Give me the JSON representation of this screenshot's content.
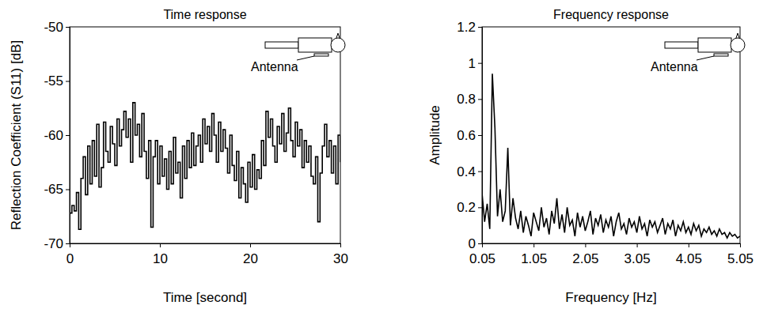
{
  "chart_data": [
    {
      "type": "line",
      "title": "Time response",
      "x_label": "Time [second]",
      "y_label": "Reflection Coefficient (S11) [dB]",
      "annotation": "Antenna",
      "color": "#000000",
      "line_style": "step",
      "xlim": [
        0,
        30
      ],
      "xticks": [
        0,
        10,
        20,
        30
      ],
      "ylim": [
        -70,
        -50
      ],
      "yticks": [
        -70,
        -65,
        -60,
        -55,
        -50
      ],
      "x": [
        0,
        0.25,
        0.5,
        0.75,
        1,
        1.25,
        1.5,
        1.75,
        2,
        2.25,
        2.5,
        2.75,
        3,
        3.25,
        3.5,
        3.75,
        4,
        4.25,
        4.5,
        4.75,
        5,
        5.25,
        5.5,
        5.75,
        6,
        6.25,
        6.5,
        6.75,
        7,
        7.25,
        7.5,
        7.75,
        8,
        8.25,
        8.5,
        8.75,
        9,
        9.25,
        9.5,
        9.75,
        10,
        10.25,
        10.5,
        10.75,
        11,
        11.25,
        11.5,
        11.75,
        12,
        12.25,
        12.5,
        12.75,
        13,
        13.25,
        13.5,
        13.75,
        14,
        14.25,
        14.5,
        14.75,
        15,
        15.25,
        15.5,
        15.75,
        16,
        16.25,
        16.5,
        16.75,
        17,
        17.25,
        17.5,
        17.75,
        18,
        18.25,
        18.5,
        18.75,
        19,
        19.25,
        19.5,
        19.75,
        20,
        20.25,
        20.5,
        20.75,
        21,
        21.25,
        21.5,
        21.75,
        22,
        22.25,
        22.5,
        22.75,
        23,
        23.25,
        23.5,
        23.75,
        24,
        24.25,
        24.5,
        24.75,
        25,
        25.25,
        25.5,
        25.75,
        26,
        26.25,
        26.5,
        26.75,
        27,
        27.25,
        27.5,
        27.75,
        28,
        28.25,
        28.5,
        28.75,
        29,
        29.25,
        29.5,
        29.75,
        30
      ],
      "values": [
        -67.2,
        -66.5,
        -67.0,
        -65.3,
        -68.7,
        -64.0,
        -62.0,
        -65.5,
        -61.0,
        -64.5,
        -60.5,
        -63.8,
        -59.0,
        -64.8,
        -63.0,
        -58.8,
        -61.5,
        -62.5,
        -59.2,
        -60.8,
        -62.8,
        -58.5,
        -61.0,
        -59.5,
        -57.8,
        -60.2,
        -58.5,
        -62.5,
        -57.0,
        -60.0,
        -59.0,
        -62.0,
        -58.0,
        -61.5,
        -64.0,
        -60.5,
        -68.5,
        -62.0,
        -60.5,
        -64.5,
        -61.0,
        -63.8,
        -62.2,
        -65.0,
        -61.5,
        -64.5,
        -60.2,
        -63.5,
        -62.5,
        -65.8,
        -61.0,
        -64.0,
        -60.5,
        -63.0,
        -59.8,
        -62.8,
        -61.0,
        -60.0,
        -62.5,
        -58.5,
        -60.8,
        -59.2,
        -61.5,
        -58.0,
        -60.0,
        -62.5,
        -58.8,
        -61.5,
        -59.5,
        -61.2,
        -63.5,
        -60.0,
        -62.8,
        -64.2,
        -61.5,
        -65.8,
        -63.0,
        -64.5,
        -66.2,
        -62.5,
        -64.8,
        -61.8,
        -65.0,
        -63.2,
        -64.0,
        -60.5,
        -62.8,
        -57.8,
        -60.2,
        -58.5,
        -61.0,
        -62.5,
        -59.2,
        -60.8,
        -58.0,
        -61.5,
        -59.8,
        -57.5,
        -60.5,
        -62.0,
        -58.8,
        -61.0,
        -59.5,
        -63.0,
        -60.5,
        -62.5,
        -61.0,
        -63.8,
        -64.5,
        -62.0,
        -68.0,
        -63.5,
        -61.0,
        -59.0,
        -62.0,
        -60.5,
        -63.5,
        -61.0,
        -64.5,
        -60.0,
        -62.5
      ]
    },
    {
      "type": "line",
      "title": "Frequency response",
      "x_label": "Frequency [Hz]",
      "y_label": "Amplitude",
      "annotation": "Antenna",
      "color": "#000000",
      "line_style": "solid",
      "xlim": [
        0.05,
        5.05
      ],
      "xticks": [
        0.05,
        1.05,
        2.05,
        3.05,
        4.05,
        5.05
      ],
      "ylim": [
        0,
        1.2
      ],
      "yticks": [
        0,
        0.2,
        0.4,
        0.6,
        0.8,
        1,
        1.2
      ],
      "x": [
        0.05,
        0.1,
        0.15,
        0.2,
        0.25,
        0.3,
        0.35,
        0.4,
        0.45,
        0.5,
        0.55,
        0.6,
        0.65,
        0.7,
        0.75,
        0.8,
        0.85,
        0.9,
        0.95,
        1,
        1.05,
        1.1,
        1.15,
        1.2,
        1.25,
        1.3,
        1.35,
        1.4,
        1.45,
        1.5,
        1.55,
        1.6,
        1.65,
        1.7,
        1.75,
        1.8,
        1.85,
        1.9,
        1.95,
        2,
        2.05,
        2.1,
        2.15,
        2.2,
        2.25,
        2.3,
        2.35,
        2.4,
        2.45,
        2.5,
        2.55,
        2.6,
        2.65,
        2.7,
        2.75,
        2.8,
        2.85,
        2.9,
        2.95,
        3,
        3.05,
        3.1,
        3.15,
        3.2,
        3.25,
        3.3,
        3.35,
        3.4,
        3.45,
        3.5,
        3.55,
        3.6,
        3.65,
        3.7,
        3.75,
        3.8,
        3.85,
        3.9,
        3.95,
        4,
        4.05,
        4.1,
        4.15,
        4.2,
        4.25,
        4.3,
        4.35,
        4.4,
        4.45,
        4.5,
        4.55,
        4.6,
        4.65,
        4.7,
        4.75,
        4.8,
        4.85,
        4.9,
        4.95,
        5,
        5.05
      ],
      "values": [
        0.28,
        0.12,
        0.22,
        0.08,
        0.94,
        0.64,
        0.15,
        0.3,
        0.12,
        0.18,
        0.53,
        0.1,
        0.25,
        0.14,
        0.08,
        0.18,
        0.06,
        0.15,
        0.1,
        0.04,
        0.17,
        0.12,
        0.07,
        0.2,
        0.09,
        0.14,
        0.05,
        0.18,
        0.11,
        0.25,
        0.08,
        0.16,
        0.06,
        0.2,
        0.1,
        0.13,
        0.04,
        0.17,
        0.09,
        0.15,
        0.07,
        0.12,
        0.18,
        0.05,
        0.14,
        0.1,
        0.16,
        0.06,
        0.13,
        0.09,
        0.15,
        0.04,
        0.12,
        0.17,
        0.08,
        0.11,
        0.05,
        0.14,
        0.09,
        0.12,
        0.06,
        0.15,
        0.08,
        0.11,
        0.04,
        0.13,
        0.09,
        0.12,
        0.06,
        0.1,
        0.14,
        0.05,
        0.11,
        0.08,
        0.13,
        0.04,
        0.1,
        0.07,
        0.12,
        0.06,
        0.09,
        0.05,
        0.11,
        0.07,
        0.1,
        0.04,
        0.08,
        0.06,
        0.09,
        0.05,
        0.07,
        0.04,
        0.08,
        0.05,
        0.06,
        0.03,
        0.06,
        0.04,
        0.05,
        0.03,
        0.04
      ]
    }
  ]
}
